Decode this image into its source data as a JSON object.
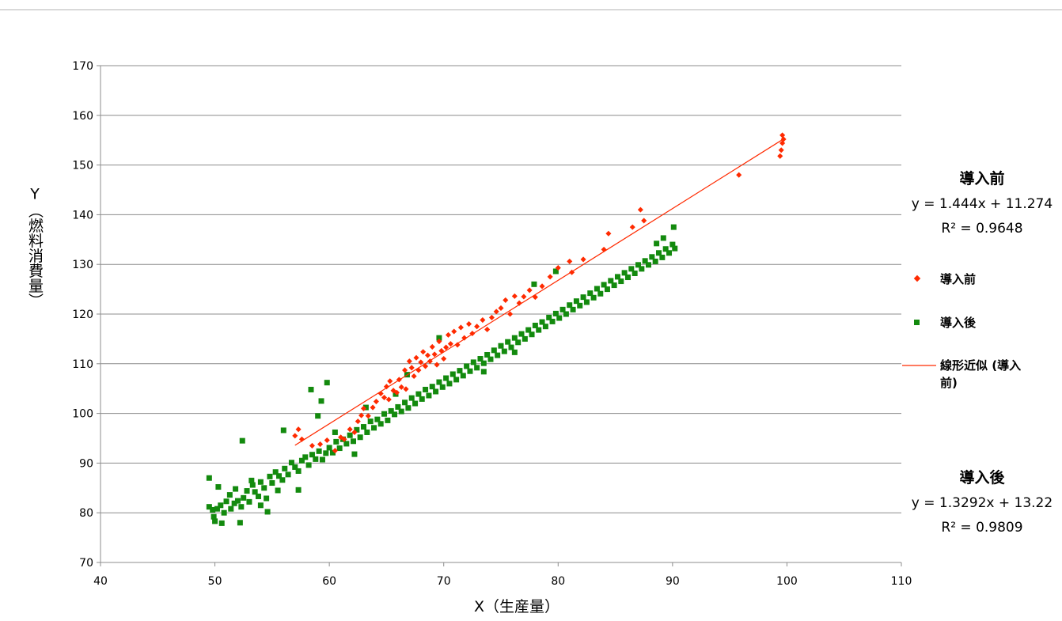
{
  "chart_data": {
    "type": "scatter",
    "title": "",
    "xlabel": "X（生産量）",
    "ylabel": "Y（燃料消費量）",
    "xlim": [
      40,
      110
    ],
    "ylim": [
      70,
      170
    ],
    "x_ticks": [
      "40",
      "50",
      "60",
      "70",
      "80",
      "90",
      "100",
      "110"
    ],
    "y_ticks": [
      "70",
      "80",
      "90",
      "100",
      "110",
      "120",
      "130",
      "140",
      "150",
      "160",
      "170"
    ],
    "grid": "horizontal",
    "legend_position": "right",
    "legend": {
      "before_label": "導入前",
      "after_label": "導入後",
      "trend_label_line1": "線形近似 (導入",
      "trend_label_line2": "前)"
    },
    "annotations": {
      "before": {
        "title": "導入前",
        "equation": "y = 1.444x + 11.274",
        "r2": "R² = 0.9648"
      },
      "after": {
        "title": "導入後",
        "equation": "y = 1.3292x + 13.22",
        "r2": "R² = 0.9809"
      }
    },
    "series": [
      {
        "name": "導入前",
        "color": "#ff2a00",
        "marker": "diamond",
        "points": [
          [
            57.0,
            95.5
          ],
          [
            57.3,
            96.8
          ],
          [
            57.6,
            94.8
          ],
          [
            58.5,
            93.5
          ],
          [
            59.2,
            93.8
          ],
          [
            59.8,
            94.6
          ],
          [
            60.5,
            92.5
          ],
          [
            61.0,
            95.2
          ],
          [
            61.3,
            94.8
          ],
          [
            61.8,
            96.8
          ],
          [
            62.2,
            96.2
          ],
          [
            62.5,
            98.4
          ],
          [
            63.0,
            101.0
          ],
          [
            62.8,
            99.6
          ],
          [
            63.4,
            99.5
          ],
          [
            63.8,
            101.2
          ],
          [
            64.1,
            102.4
          ],
          [
            64.5,
            104.0
          ],
          [
            64.8,
            103.2
          ],
          [
            65.0,
            105.4
          ],
          [
            65.3,
            106.5
          ],
          [
            65.2,
            102.8
          ],
          [
            65.6,
            104.6
          ],
          [
            65.9,
            104.2
          ],
          [
            66.1,
            106.8
          ],
          [
            66.3,
            105.3
          ],
          [
            66.6,
            108.7
          ],
          [
            66.7,
            104.9
          ],
          [
            67.0,
            110.5
          ],
          [
            67.2,
            109.2
          ],
          [
            67.4,
            107.5
          ],
          [
            67.6,
            111.2
          ],
          [
            67.8,
            108.7
          ],
          [
            68.0,
            110.3
          ],
          [
            68.2,
            112.4
          ],
          [
            68.4,
            109.5
          ],
          [
            68.6,
            111.7
          ],
          [
            68.8,
            110.5
          ],
          [
            69.0,
            113.4
          ],
          [
            69.2,
            111.9
          ],
          [
            69.4,
            109.8
          ],
          [
            69.6,
            114.5
          ],
          [
            69.8,
            112.6
          ],
          [
            70.0,
            111.0
          ],
          [
            70.2,
            113.3
          ],
          [
            70.4,
            115.8
          ],
          [
            70.6,
            114.0
          ],
          [
            70.9,
            116.5
          ],
          [
            71.2,
            113.8
          ],
          [
            71.5,
            117.3
          ],
          [
            71.8,
            115.2
          ],
          [
            72.2,
            118.0
          ],
          [
            72.5,
            116.1
          ],
          [
            72.9,
            117.5
          ],
          [
            73.4,
            118.8
          ],
          [
            73.8,
            116.9
          ],
          [
            74.2,
            119.3
          ],
          [
            74.6,
            120.5
          ],
          [
            75.0,
            121.2
          ],
          [
            75.4,
            122.8
          ],
          [
            75.8,
            120.0
          ],
          [
            76.2,
            123.6
          ],
          [
            76.6,
            122.2
          ],
          [
            77.0,
            123.5
          ],
          [
            77.5,
            124.8
          ],
          [
            78.0,
            123.4
          ],
          [
            78.6,
            125.6
          ],
          [
            79.3,
            127.5
          ],
          [
            80.0,
            129.3
          ],
          [
            81.0,
            130.6
          ],
          [
            81.2,
            128.4
          ],
          [
            82.2,
            131.0
          ],
          [
            84.0,
            133.0
          ],
          [
            84.4,
            136.2
          ],
          [
            86.5,
            137.5
          ],
          [
            87.2,
            141.0
          ],
          [
            87.5,
            138.8
          ],
          [
            95.8,
            148.0
          ],
          [
            99.4,
            151.8
          ],
          [
            99.5,
            153.0
          ],
          [
            99.6,
            154.4
          ],
          [
            99.6,
            156.0
          ],
          [
            99.7,
            155.2
          ]
        ]
      },
      {
        "name": "導入後",
        "color": "#138a0e",
        "marker": "square",
        "points": [
          [
            49.5,
            81.2
          ],
          [
            49.8,
            80.6
          ],
          [
            49.9,
            79.2
          ],
          [
            50.0,
            78.3
          ],
          [
            50.2,
            80.8
          ],
          [
            50.5,
            81.5
          ],
          [
            50.8,
            80.0
          ],
          [
            50.6,
            77.9
          ],
          [
            51.0,
            82.3
          ],
          [
            51.3,
            83.6
          ],
          [
            51.4,
            80.8
          ],
          [
            51.7,
            81.9
          ],
          [
            52.0,
            82.4
          ],
          [
            52.3,
            81.2
          ],
          [
            52.5,
            83.0
          ],
          [
            52.8,
            84.4
          ],
          [
            52.2,
            78.0
          ],
          [
            53.0,
            82.2
          ],
          [
            53.3,
            85.6
          ],
          [
            53.5,
            84.2
          ],
          [
            53.8,
            83.3
          ],
          [
            54.0,
            86.2
          ],
          [
            54.3,
            85.0
          ],
          [
            54.5,
            82.9
          ],
          [
            54.8,
            87.3
          ],
          [
            55.0,
            86.0
          ],
          [
            55.3,
            88.2
          ],
          [
            55.6,
            87.4
          ],
          [
            55.9,
            86.6
          ],
          [
            56.1,
            88.9
          ],
          [
            56.4,
            87.7
          ],
          [
            56.7,
            90.1
          ],
          [
            57.0,
            89.2
          ],
          [
            57.3,
            88.4
          ],
          [
            57.6,
            90.5
          ],
          [
            57.9,
            91.2
          ],
          [
            58.2,
            89.6
          ],
          [
            58.5,
            91.7
          ],
          [
            58.8,
            90.8
          ],
          [
            59.1,
            92.4
          ],
          [
            59.4,
            90.7
          ],
          [
            59.7,
            92.0
          ],
          [
            60.0,
            93.1
          ],
          [
            60.3,
            92.1
          ],
          [
            60.6,
            94.3
          ],
          [
            60.9,
            93.0
          ],
          [
            61.2,
            94.8
          ],
          [
            61.5,
            93.9
          ],
          [
            61.8,
            95.6
          ],
          [
            62.1,
            94.4
          ],
          [
            62.4,
            96.7
          ],
          [
            62.7,
            95.2
          ],
          [
            63.0,
            97.3
          ],
          [
            63.3,
            96.2
          ],
          [
            63.6,
            98.4
          ],
          [
            63.9,
            97.1
          ],
          [
            64.2,
            98.8
          ],
          [
            64.5,
            97.9
          ],
          [
            64.8,
            99.9
          ],
          [
            65.1,
            98.6
          ],
          [
            65.4,
            100.5
          ],
          [
            65.7,
            99.8
          ],
          [
            66.0,
            101.3
          ],
          [
            66.3,
            100.4
          ],
          [
            66.6,
            102.2
          ],
          [
            66.9,
            101.1
          ],
          [
            67.2,
            103.1
          ],
          [
            67.5,
            102.0
          ],
          [
            67.8,
            103.9
          ],
          [
            68.1,
            102.9
          ],
          [
            68.4,
            104.8
          ],
          [
            68.7,
            103.6
          ],
          [
            69.0,
            105.4
          ],
          [
            69.3,
            104.4
          ],
          [
            69.6,
            106.3
          ],
          [
            69.9,
            105.3
          ],
          [
            70.2,
            107.1
          ],
          [
            70.5,
            106.0
          ],
          [
            70.8,
            107.9
          ],
          [
            71.1,
            106.8
          ],
          [
            71.4,
            108.6
          ],
          [
            71.7,
            107.6
          ],
          [
            72.0,
            109.5
          ],
          [
            72.3,
            108.5
          ],
          [
            72.6,
            110.3
          ],
          [
            72.9,
            109.2
          ],
          [
            73.2,
            111.0
          ],
          [
            73.5,
            110.1
          ],
          [
            73.8,
            111.8
          ],
          [
            74.1,
            110.9
          ],
          [
            74.4,
            112.7
          ],
          [
            74.7,
            111.7
          ],
          [
            75.0,
            113.6
          ],
          [
            75.3,
            112.5
          ],
          [
            75.6,
            114.4
          ],
          [
            75.9,
            113.3
          ],
          [
            76.2,
            115.2
          ],
          [
            76.5,
            114.3
          ],
          [
            76.8,
            116.0
          ],
          [
            77.1,
            115.0
          ],
          [
            77.4,
            116.8
          ],
          [
            77.7,
            115.9
          ],
          [
            78.0,
            117.7
          ],
          [
            78.3,
            116.8
          ],
          [
            78.6,
            118.4
          ],
          [
            78.9,
            117.5
          ],
          [
            79.2,
            119.3
          ],
          [
            79.5,
            118.5
          ],
          [
            79.8,
            120.1
          ],
          [
            80.1,
            119.2
          ],
          [
            80.4,
            120.9
          ],
          [
            80.7,
            120.0
          ],
          [
            81.0,
            121.8
          ],
          [
            81.3,
            120.9
          ],
          [
            81.6,
            122.6
          ],
          [
            81.9,
            121.7
          ],
          [
            82.2,
            123.4
          ],
          [
            82.5,
            122.4
          ],
          [
            82.8,
            124.2
          ],
          [
            83.1,
            123.3
          ],
          [
            83.4,
            125.1
          ],
          [
            83.7,
            124.1
          ],
          [
            84.0,
            125.9
          ],
          [
            84.3,
            125.0
          ],
          [
            84.6,
            126.7
          ],
          [
            84.9,
            125.8
          ],
          [
            85.2,
            127.5
          ],
          [
            85.5,
            126.6
          ],
          [
            85.8,
            128.3
          ],
          [
            86.1,
            127.4
          ],
          [
            86.4,
            129.1
          ],
          [
            86.7,
            128.2
          ],
          [
            87.0,
            129.9
          ],
          [
            87.3,
            129.1
          ],
          [
            87.6,
            130.7
          ],
          [
            87.9,
            129.9
          ],
          [
            88.2,
            131.5
          ],
          [
            88.5,
            130.6
          ],
          [
            88.8,
            132.3
          ],
          [
            89.1,
            131.4
          ],
          [
            89.4,
            133.1
          ],
          [
            89.7,
            132.3
          ],
          [
            90.0,
            134.0
          ],
          [
            90.2,
            133.2
          ],
          [
            89.2,
            135.3
          ],
          [
            90.1,
            137.5
          ],
          [
            88.6,
            134.2
          ],
          [
            49.5,
            87.0
          ],
          [
            50.3,
            85.2
          ],
          [
            52.4,
            94.5
          ],
          [
            54.0,
            81.5
          ],
          [
            55.5,
            84.5
          ],
          [
            56.0,
            96.6
          ],
          [
            58.4,
            104.8
          ],
          [
            59.0,
            99.5
          ],
          [
            59.3,
            102.5
          ],
          [
            59.8,
            106.2
          ],
          [
            57.3,
            84.6
          ],
          [
            53.2,
            86.5
          ],
          [
            54.6,
            80.2
          ],
          [
            51.8,
            84.8
          ],
          [
            66.8,
            107.8
          ],
          [
            69.6,
            115.2
          ],
          [
            77.9,
            126.0
          ],
          [
            79.8,
            128.6
          ],
          [
            76.2,
            112.3
          ],
          [
            73.5,
            108.4
          ],
          [
            63.2,
            101.2
          ],
          [
            65.8,
            103.9
          ],
          [
            60.5,
            96.2
          ],
          [
            62.2,
            91.8
          ]
        ]
      }
    ],
    "trendline": {
      "series": "導入前",
      "slope": 1.444,
      "intercept": 11.274,
      "x_range": [
        57.0,
        99.7
      ],
      "color": "#ff2a00"
    }
  }
}
